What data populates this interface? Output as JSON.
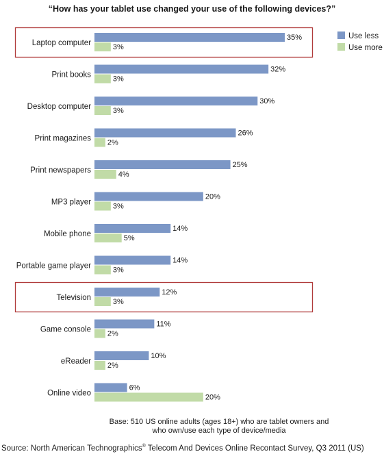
{
  "chart_data": {
    "type": "bar",
    "orientation": "horizontal",
    "title": "“How has your tablet use changed your use of the following devices?”",
    "categories": [
      "Laptop computer",
      "Print books",
      "Desktop computer",
      "Print magazines",
      "Print newspapers",
      "MP3 player",
      "Mobile phone",
      "Portable game player",
      "Television",
      "Game console",
      "eReader",
      "Online video"
    ],
    "series": [
      {
        "name": "Use less",
        "color": "#7c97c6",
        "values": [
          35,
          32,
          30,
          26,
          25,
          20,
          14,
          14,
          12,
          11,
          10,
          6
        ]
      },
      {
        "name": "Use more",
        "color": "#c1dba7",
        "values": [
          3,
          3,
          3,
          2,
          4,
          3,
          5,
          3,
          3,
          2,
          2,
          20
        ]
      }
    ],
    "value_suffix": "%",
    "xlim": [
      0,
      35
    ],
    "highlighted_categories": [
      "Laptop computer",
      "Television"
    ],
    "highlight_color": "#b03a3a",
    "legend_position": "top-right",
    "grid": false
  },
  "footnote": {
    "base_line1": "Base: 510 US online adults (ages 18+) who are tablet owners and",
    "base_line2": "who own/use each type of device/media",
    "source_prefix": "Source: North American Technographics",
    "source_mark": "®",
    "source_suffix": " Telecom And Devices Online Recontact Survey, Q3 2011 (US)"
  }
}
